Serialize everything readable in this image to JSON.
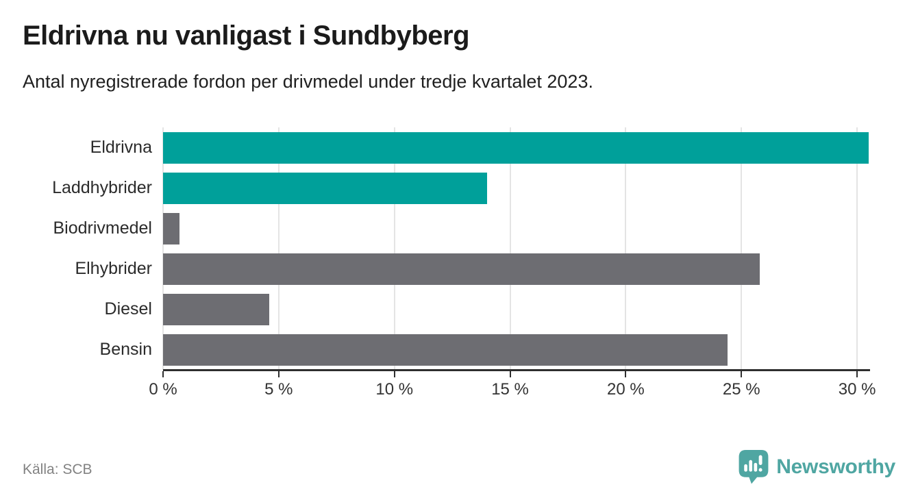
{
  "header": {
    "title": "Eldrivna nu vanligast i Sundbyberg",
    "subtitle": "Antal nyregistrerade fordon per drivmedel under tredje kvartalet 2023."
  },
  "footer": {
    "source": "Källa: SCB",
    "brand": "Newsworthy"
  },
  "colors": {
    "teal": "#00a09a",
    "gray": "#6d6d72",
    "brand": "#4fa6a2",
    "axis": "#2e2e2e",
    "grid": "#e4e4e4",
    "text": "#333333"
  },
  "chart_data": {
    "type": "bar",
    "orientation": "horizontal",
    "title": "Eldrivna nu vanligast i Sundbyberg",
    "subtitle": "Antal nyregistrerade fordon per drivmedel under tredje kvartalet 2023.",
    "categories": [
      "Eldrivna",
      "Laddhybrider",
      "Biodrivmedel",
      "Elhybrider",
      "Diesel",
      "Bensin"
    ],
    "values": [
      30.5,
      14.0,
      0.7,
      25.8,
      4.6,
      24.4
    ],
    "unit": "%",
    "bar_colors": [
      "teal",
      "teal",
      "gray",
      "gray",
      "gray",
      "gray"
    ],
    "xlim": [
      0,
      30.5
    ],
    "x_ticks": [
      0,
      5,
      10,
      15,
      20,
      25,
      30
    ],
    "x_tick_labels": [
      "0 %",
      "5 %",
      "10 %",
      "15 %",
      "20 %",
      "25 %",
      "30 %"
    ],
    "grid": true,
    "legend": false
  }
}
